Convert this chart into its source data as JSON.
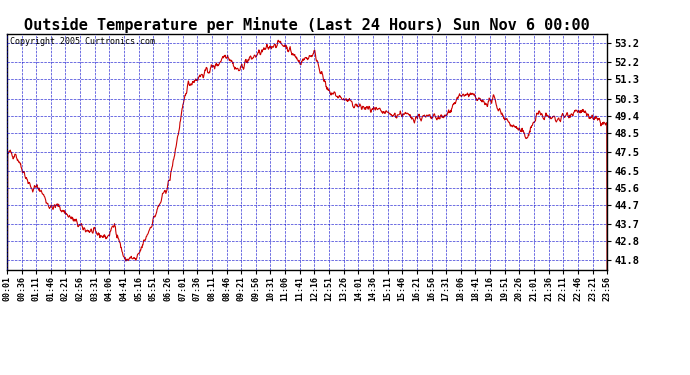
{
  "title": "Outside Temperature per Minute (Last 24 Hours) Sun Nov 6 00:00",
  "copyright": "Copyright 2005 Curtronics.com",
  "y_ticks": [
    41.8,
    42.8,
    43.7,
    44.7,
    45.6,
    46.5,
    47.5,
    48.5,
    49.4,
    50.3,
    51.3,
    52.2,
    53.2
  ],
  "ylim": [
    41.3,
    53.7
  ],
  "background_color": "#ffffff",
  "grid_color": "#0000cc",
  "line_color": "#cc0000",
  "title_fontsize": 11,
  "x_tick_labels": [
    "00:01",
    "00:36",
    "01:11",
    "01:46",
    "02:21",
    "02:56",
    "03:31",
    "04:06",
    "04:41",
    "05:16",
    "05:51",
    "06:26",
    "07:01",
    "07:36",
    "08:11",
    "08:46",
    "09:21",
    "09:56",
    "10:31",
    "11:06",
    "11:41",
    "12:16",
    "12:51",
    "13:26",
    "14:01",
    "14:36",
    "15:11",
    "15:46",
    "16:21",
    "16:56",
    "17:31",
    "18:06",
    "18:41",
    "19:16",
    "19:51",
    "20:26",
    "21:01",
    "21:36",
    "22:11",
    "22:46",
    "23:21",
    "23:56"
  ],
  "num_points": 1440,
  "seed": 42
}
